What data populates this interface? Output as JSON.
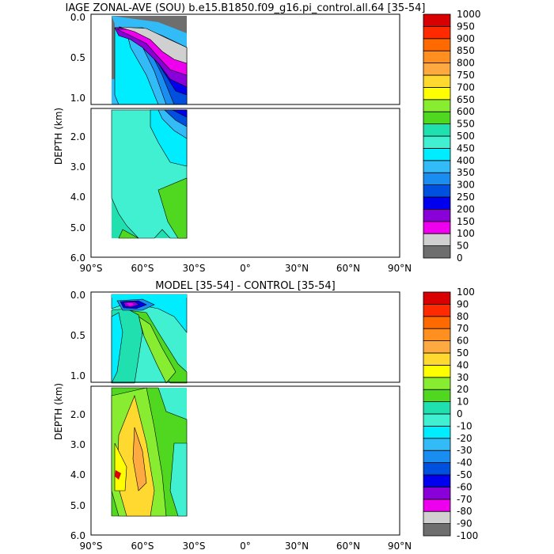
{
  "chart_data": [
    {
      "type": "heatmap",
      "title": "IAGE ZONAL-AVE (SOU) b.e15.B1850.f09_g16.pi_control.all.64 [35-54]",
      "ylabel": "DEPTH (km)",
      "x_ticks": [
        "90°S",
        "60°S",
        "30°S",
        "0°",
        "30°N",
        "60°N",
        "90°N"
      ],
      "y_ticks_upper": [
        "0.0",
        "0.5",
        "1.0"
      ],
      "y_ticks_lower": [
        "2.0",
        "3.0",
        "4.0",
        "5.0",
        "6.0"
      ],
      "xlim": [
        -90,
        90
      ],
      "ylim_upper_km": [
        0,
        1.1
      ],
      "ylim_lower_km": [
        1.1,
        6.0
      ],
      "data_lat_range": [
        -78,
        -34
      ],
      "colorbar": {
        "labels": [
          "0",
          "50",
          "100",
          "150",
          "200",
          "250",
          "300",
          "350",
          "400",
          "450",
          "500",
          "550",
          "600",
          "650",
          "700",
          "750",
          "800",
          "850",
          "900",
          "950",
          "1000"
        ],
        "colors": [
          "#6e6e6e",
          "#d0d0d0",
          "#ee00ee",
          "#8a00d8",
          "#0000ee",
          "#0050e0",
          "#1a8ef0",
          "#33bbf8",
          "#00ecff",
          "#40f0d0",
          "#20e0b0",
          "#50d820",
          "#88ec30",
          "#ffff00",
          "#ffd830",
          "#ffaa40",
          "#ff9020",
          "#ff6a00",
          "#ff2a00",
          "#d80000"
        ]
      }
    },
    {
      "type": "heatmap",
      "title": "MODEL [35-54] - CONTROL [35-54]",
      "ylabel": "DEPTH (km)",
      "x_ticks": [
        "90°S",
        "60°S",
        "30°S",
        "0°",
        "30°N",
        "60°N",
        "90°N"
      ],
      "y_ticks_upper": [
        "0.0",
        "0.5",
        "1.0"
      ],
      "y_ticks_lower": [
        "2.0",
        "3.0",
        "4.0",
        "5.0",
        "6.0"
      ],
      "xlim": [
        -90,
        90
      ],
      "ylim_upper_km": [
        0,
        1.1
      ],
      "ylim_lower_km": [
        1.1,
        6.0
      ],
      "data_lat_range": [
        -78,
        -34
      ],
      "colorbar": {
        "labels": [
          "-100",
          "-90",
          "-80",
          "-70",
          "-60",
          "-50",
          "-40",
          "-30",
          "-20",
          "-10",
          "0",
          "10",
          "20",
          "30",
          "40",
          "50",
          "60",
          "70",
          "80",
          "90",
          "100"
        ],
        "colors": [
          "#6e6e6e",
          "#d0d0d0",
          "#ee00ee",
          "#8a00d8",
          "#0000ee",
          "#0050e0",
          "#1a8ef0",
          "#33bbf8",
          "#00ecff",
          "#40f0d0",
          "#20e0b0",
          "#50d820",
          "#88ec30",
          "#ffff00",
          "#ffd830",
          "#ffaa40",
          "#ff9020",
          "#ff6a00",
          "#ff2a00",
          "#d80000"
        ]
      }
    }
  ]
}
